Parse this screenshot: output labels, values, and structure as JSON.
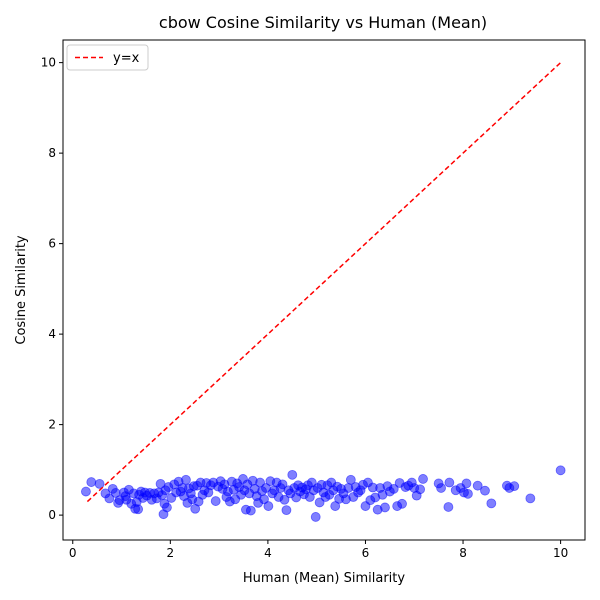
{
  "chart_data": {
    "type": "scatter",
    "title": "cbow Cosine Similarity vs Human (Mean)",
    "xlabel": "Human (Mean) Similarity",
    "ylabel": "Cosine Similarity",
    "xlim": [
      -0.2,
      10.5
    ],
    "ylim": [
      -0.55,
      10.5
    ],
    "xticks": [
      0,
      2,
      4,
      6,
      8,
      10
    ],
    "yticks": [
      0,
      2,
      4,
      6,
      8,
      10
    ],
    "grid": false,
    "legend": {
      "position": "top-left",
      "entries": [
        "y=x"
      ]
    },
    "reference_line": {
      "label": "y=x",
      "x": [
        0.3,
        10
      ],
      "y": [
        0.3,
        10
      ],
      "color": "#ff0000",
      "style": "dashed"
    },
    "series": [
      {
        "color": "#0000ff",
        "points": [
          [
            0.27,
            0.52
          ],
          [
            0.38,
            0.73
          ],
          [
            0.55,
            0.69
          ],
          [
            0.67,
            0.48
          ],
          [
            0.75,
            0.37
          ],
          [
            0.82,
            0.58
          ],
          [
            0.88,
            0.49
          ],
          [
            0.93,
            0.27
          ],
          [
            0.96,
            0.33
          ],
          [
            1.05,
            0.5
          ],
          [
            1.08,
            0.42
          ],
          [
            1.1,
            0.34
          ],
          [
            1.15,
            0.56
          ],
          [
            1.2,
            0.25
          ],
          [
            1.25,
            0.48
          ],
          [
            1.28,
            0.14
          ],
          [
            1.31,
            0.29
          ],
          [
            1.34,
            0.13
          ],
          [
            1.36,
            0.45
          ],
          [
            1.4,
            0.52
          ],
          [
            1.44,
            0.38
          ],
          [
            1.48,
            0.5
          ],
          [
            1.52,
            0.43
          ],
          [
            1.58,
            0.49
          ],
          [
            1.62,
            0.34
          ],
          [
            1.67,
            0.48
          ],
          [
            1.72,
            0.37
          ],
          [
            1.76,
            0.5
          ],
          [
            1.8,
            0.69
          ],
          [
            1.83,
            0.44
          ],
          [
            1.86,
            0.02
          ],
          [
            1.88,
            0.25
          ],
          [
            1.9,
            0.55
          ],
          [
            1.93,
            0.17
          ],
          [
            1.96,
            0.62
          ],
          [
            2.02,
            0.38
          ],
          [
            2.08,
            0.68
          ],
          [
            2.12,
            0.5
          ],
          [
            2.17,
            0.74
          ],
          [
            2.21,
            0.52
          ],
          [
            2.25,
            0.6
          ],
          [
            2.28,
            0.42
          ],
          [
            2.32,
            0.78
          ],
          [
            2.35,
            0.27
          ],
          [
            2.38,
            0.59
          ],
          [
            2.42,
            0.48
          ],
          [
            2.45,
            0.35
          ],
          [
            2.48,
            0.64
          ],
          [
            2.51,
            0.14
          ],
          [
            2.55,
            0.65
          ],
          [
            2.58,
            0.3
          ],
          [
            2.62,
            0.72
          ],
          [
            2.66,
            0.45
          ],
          [
            2.7,
            0.55
          ],
          [
            2.74,
            0.71
          ],
          [
            2.78,
            0.5
          ],
          [
            2.83,
            0.66
          ],
          [
            2.88,
            0.72
          ],
          [
            2.93,
            0.31
          ],
          [
            2.98,
            0.63
          ],
          [
            3.03,
            0.75
          ],
          [
            3.07,
            0.58
          ],
          [
            3.11,
            0.68
          ],
          [
            3.15,
            0.4
          ],
          [
            3.18,
            0.52
          ],
          [
            3.22,
            0.3
          ],
          [
            3.26,
            0.74
          ],
          [
            3.3,
            0.56
          ],
          [
            3.33,
            0.35
          ],
          [
            3.37,
            0.7
          ],
          [
            3.41,
            0.62
          ],
          [
            3.45,
            0.45
          ],
          [
            3.49,
            0.8
          ],
          [
            3.52,
            0.55
          ],
          [
            3.55,
            0.12
          ],
          [
            3.58,
            0.68
          ],
          [
            3.62,
            0.48
          ],
          [
            3.65,
            0.1
          ],
          [
            3.69,
            0.76
          ],
          [
            3.73,
            0.58
          ],
          [
            3.77,
            0.42
          ],
          [
            3.8,
            0.27
          ],
          [
            3.84,
            0.72
          ],
          [
            3.88,
            0.53
          ],
          [
            3.92,
            0.35
          ],
          [
            3.96,
            0.6
          ],
          [
            4.01,
            0.2
          ],
          [
            4.05,
            0.75
          ],
          [
            4.09,
            0.48
          ],
          [
            4.13,
            0.55
          ],
          [
            4.18,
            0.72
          ],
          [
            4.22,
            0.4
          ],
          [
            4.26,
            0.6
          ],
          [
            4.3,
            0.68
          ],
          [
            4.34,
            0.34
          ],
          [
            4.38,
            0.11
          ],
          [
            4.42,
            0.55
          ],
          [
            4.46,
            0.48
          ],
          [
            4.5,
            0.89
          ],
          [
            4.54,
            0.6
          ],
          [
            4.58,
            0.39
          ],
          [
            4.62,
            0.66
          ],
          [
            4.66,
            0.52
          ],
          [
            4.7,
            0.61
          ],
          [
            4.74,
            0.46
          ],
          [
            4.78,
            0.57
          ],
          [
            4.82,
            0.66
          ],
          [
            4.86,
            0.4
          ],
          [
            4.9,
            0.72
          ],
          [
            4.94,
            0.55
          ],
          [
            4.98,
            -0.04
          ],
          [
            5.02,
            0.6
          ],
          [
            5.06,
            0.28
          ],
          [
            5.1,
            0.67
          ],
          [
            5.14,
            0.5
          ],
          [
            5.18,
            0.4
          ],
          [
            5.22,
            0.66
          ],
          [
            5.26,
            0.45
          ],
          [
            5.3,
            0.72
          ],
          [
            5.34,
            0.55
          ],
          [
            5.38,
            0.2
          ],
          [
            5.42,
            0.63
          ],
          [
            5.46,
            0.36
          ],
          [
            5.5,
            0.58
          ],
          [
            5.55,
            0.48
          ],
          [
            5.6,
            0.35
          ],
          [
            5.65,
            0.6
          ],
          [
            5.7,
            0.78
          ],
          [
            5.75,
            0.4
          ],
          [
            5.8,
            0.62
          ],
          [
            5.85,
            0.5
          ],
          [
            5.9,
            0.55
          ],
          [
            5.95,
            0.67
          ],
          [
            6.0,
            0.2
          ],
          [
            6.05,
            0.72
          ],
          [
            6.1,
            0.33
          ],
          [
            6.15,
            0.61
          ],
          [
            6.2,
            0.39
          ],
          [
            6.25,
            0.12
          ],
          [
            6.3,
            0.6
          ],
          [
            6.35,
            0.45
          ],
          [
            6.4,
            0.17
          ],
          [
            6.45,
            0.64
          ],
          [
            6.5,
            0.52
          ],
          [
            6.58,
            0.58
          ],
          [
            6.65,
            0.2
          ],
          [
            6.7,
            0.71
          ],
          [
            6.75,
            0.25
          ],
          [
            6.82,
            0.62
          ],
          [
            6.88,
            0.65
          ],
          [
            6.95,
            0.72
          ],
          [
            7.0,
            0.6
          ],
          [
            7.05,
            0.43
          ],
          [
            7.12,
            0.57
          ],
          [
            7.18,
            0.8
          ],
          [
            7.5,
            0.7
          ],
          [
            7.55,
            0.6
          ],
          [
            7.7,
            0.18
          ],
          [
            7.72,
            0.72
          ],
          [
            7.85,
            0.55
          ],
          [
            7.95,
            0.6
          ],
          [
            8.02,
            0.5
          ],
          [
            8.07,
            0.7
          ],
          [
            8.1,
            0.47
          ],
          [
            8.3,
            0.65
          ],
          [
            8.45,
            0.54
          ],
          [
            8.58,
            0.26
          ],
          [
            8.9,
            0.65
          ],
          [
            8.95,
            0.6
          ],
          [
            9.05,
            0.64
          ],
          [
            9.38,
            0.37
          ],
          [
            10.0,
            0.99
          ]
        ]
      }
    ]
  }
}
